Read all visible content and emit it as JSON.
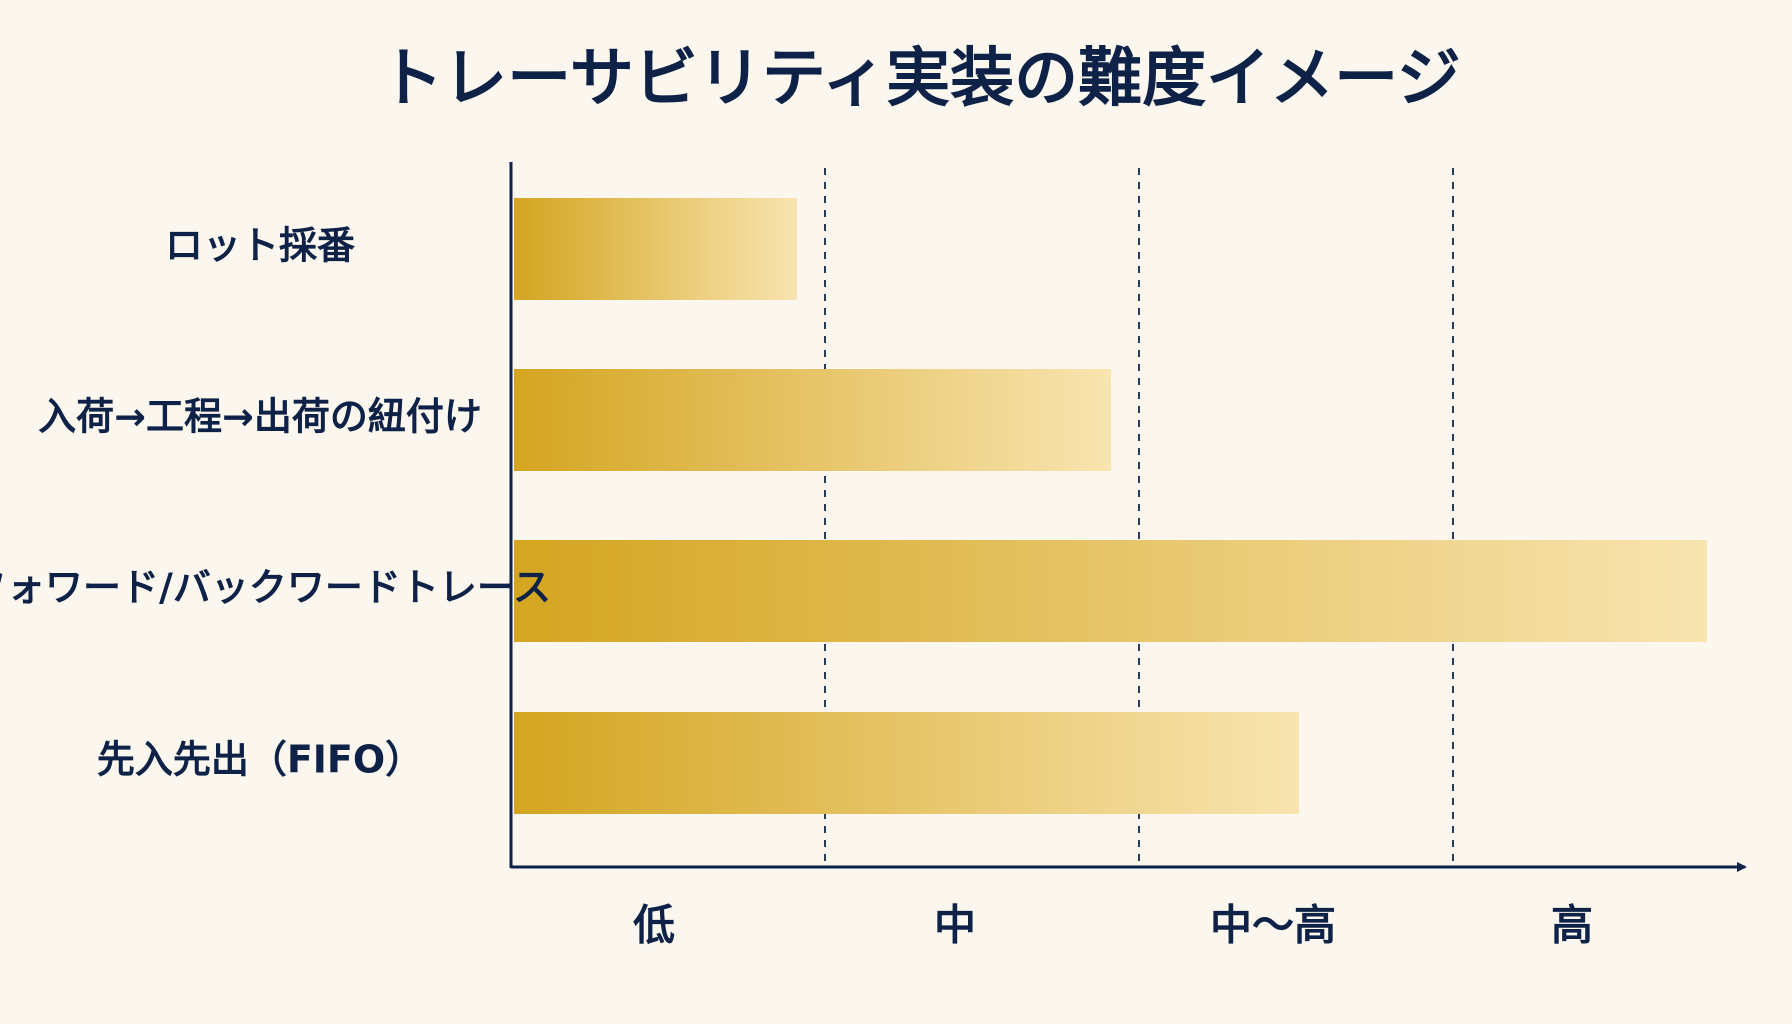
{
  "chart_data": {
    "type": "bar",
    "orientation": "horizontal",
    "title": "トレーサビリティ実装の難度イメージ",
    "categories": [
      "ロット採番",
      "入荷→工程→出荷の紐付け",
      "フォワード/バックワードトレース",
      "先入先出（FIFO）"
    ],
    "values": [
      0.9,
      1.9,
      3.8,
      2.5
    ],
    "x_ticks": [
      "低",
      "中",
      "中〜高",
      "高"
    ],
    "xlim": [
      0,
      4
    ],
    "grid": "vertical dashed",
    "legend": "none",
    "colors": {
      "bar_start": "#d4a520",
      "bar_end": "#f8e4b0",
      "text": "#0e2247",
      "axis": "#0e2247",
      "background": "#fbf7ef"
    }
  }
}
